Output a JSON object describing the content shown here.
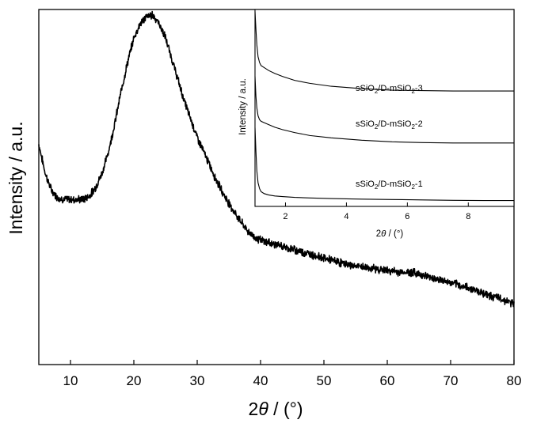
{
  "chart_data": [
    {
      "type": "line",
      "title": "",
      "xlabel_prefix": "2",
      "xlabel_symbol": "θ",
      "xlabel_suffix": " / (°)",
      "ylabel": "Intensity / a.u.",
      "xlim": [
        5,
        80
      ],
      "ylim": [
        0,
        100
      ],
      "xticks": [
        "10",
        "20",
        "30",
        "40",
        "50",
        "60",
        "70",
        "80"
      ],
      "x": [
        5,
        6,
        7,
        8,
        9,
        10,
        11,
        12,
        13,
        14,
        15,
        16,
        17,
        18,
        19,
        20,
        21,
        22,
        23,
        24,
        25,
        26,
        27,
        28,
        29,
        30,
        31,
        32,
        33,
        34,
        35,
        36,
        37,
        38,
        39,
        40,
        42,
        44,
        46,
        48,
        50,
        52,
        54,
        56,
        58,
        60,
        62,
        64,
        66,
        68,
        70,
        72,
        74,
        76,
        78,
        80
      ],
      "values": [
        62,
        54,
        49,
        47,
        46.5,
        46.5,
        46.5,
        46.5,
        47.5,
        50,
        54,
        60,
        68,
        77,
        85,
        92,
        96,
        98,
        98.5,
        96,
        92,
        86,
        80,
        74,
        69,
        64,
        60,
        56,
        52,
        48.5,
        45.5,
        42.5,
        40,
        37.5,
        36,
        35,
        34,
        33,
        32,
        31,
        30,
        29,
        28,
        27.5,
        27,
        26.5,
        26,
        26,
        25,
        24,
        23,
        22,
        21,
        19.5,
        18.5,
        17
      ]
    },
    {
      "type": "line",
      "title": "",
      "xlabel_prefix": "2",
      "xlabel_symbol": "θ",
      "xlabel_suffix": " / (°)",
      "ylabel": "Intensity / a.u.",
      "xlim": [
        1,
        9.5
      ],
      "ylim": [
        0,
        100
      ],
      "xticks": [
        "2",
        "4",
        "6",
        "8"
      ],
      "series": [
        {
          "name_prefix": "sSiO",
          "name_sub1": "2",
          "name_mid": "/D-mSiO",
          "name_sub2": "2",
          "name_suffix": "-1",
          "x": [
            1.0,
            1.03,
            1.06,
            1.1,
            1.15,
            1.2,
            1.3,
            1.45,
            1.65,
            1.9,
            2.3,
            2.8,
            3.5,
            4.5,
            5.5,
            6.5,
            7.5,
            8.5,
            9.5
          ],
          "values": [
            40,
            28,
            18,
            12,
            9,
            7.5,
            6.5,
            5.8,
            5.3,
            5.0,
            4.6,
            4.3,
            4.0,
            3.7,
            3.5,
            3.3,
            3.1,
            3.0,
            3.0
          ]
        },
        {
          "name_prefix": "sSiO",
          "name_sub1": "2",
          "name_mid": "/D-mSiO",
          "name_sub2": "2",
          "name_suffix": "-2",
          "x": [
            1.0,
            1.03,
            1.06,
            1.1,
            1.15,
            1.2,
            1.3,
            1.45,
            1.65,
            1.9,
            2.3,
            2.8,
            3.5,
            4.5,
            5.5,
            6.5,
            7.5,
            8.5,
            9.5
          ],
          "values": [
            66,
            56,
            50,
            46,
            44,
            43.2,
            42.5,
            41.5,
            40.2,
            39.0,
            37.5,
            36.0,
            34.8,
            33.6,
            32.8,
            32.4,
            32.2,
            32.2,
            32.2
          ]
        },
        {
          "name_prefix": "sSiO",
          "name_sub1": "2",
          "name_mid": "/D-mSiO",
          "name_sub2": "2",
          "name_suffix": "-3",
          "x": [
            1.0,
            1.03,
            1.06,
            1.1,
            1.15,
            1.2,
            1.3,
            1.45,
            1.65,
            1.9,
            2.3,
            2.8,
            3.5,
            4.5,
            5.5,
            6.5,
            7.5,
            8.5,
            9.5
          ],
          "values": [
            99,
            90,
            82,
            76,
            73,
            71.5,
            70.5,
            69,
            67.5,
            66,
            64,
            62.5,
            61,
            59.8,
            59,
            58.8,
            58.6,
            58.6,
            58.6
          ]
        }
      ]
    }
  ]
}
